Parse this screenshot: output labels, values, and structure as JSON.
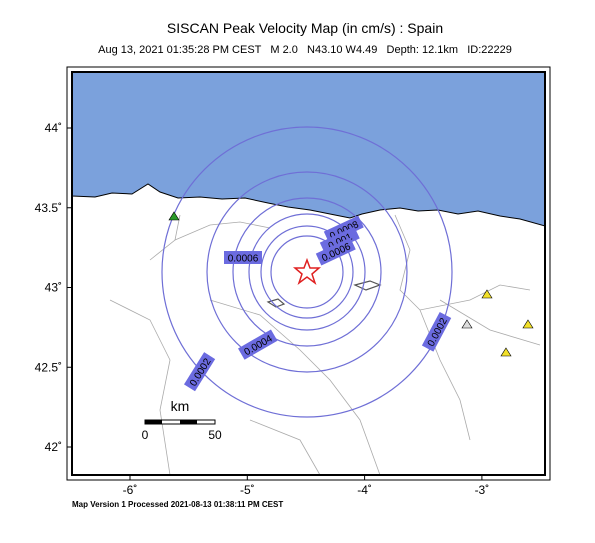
{
  "header": {
    "title": "SISCAN Peak Velocity Map (in cm/s) : Spain",
    "subtitle": "Aug 13, 2021 01:35:28 PM CEST   M 2.0   N43.10 W4.49   Depth: 12.1km   ID:22229"
  },
  "map": {
    "lat_ticks": [
      {
        "value": 44,
        "label": "44˚"
      },
      {
        "value": 43.5,
        "label": "43.5˚"
      },
      {
        "value": 43,
        "label": "43˚"
      },
      {
        "value": 42.5,
        "label": "42.5˚"
      },
      {
        "value": 42,
        "label": "42˚"
      }
    ],
    "lon_ticks": [
      {
        "value": -6,
        "label": "-6˚"
      },
      {
        "value": -5,
        "label": "-5˚"
      },
      {
        "value": -4,
        "label": "-4˚"
      },
      {
        "value": -3,
        "label": "-3˚"
      }
    ],
    "contour_labels": [
      "0.0006",
      "0.0008",
      "0.001",
      "0.0006",
      "0.0004",
      "0.0002",
      "0.0002"
    ],
    "scale": {
      "unit": "km",
      "start": "0",
      "end": "50"
    }
  },
  "footer": "Map Version 1 Processed 2021-08-13 01:38:11 PM CEST"
}
